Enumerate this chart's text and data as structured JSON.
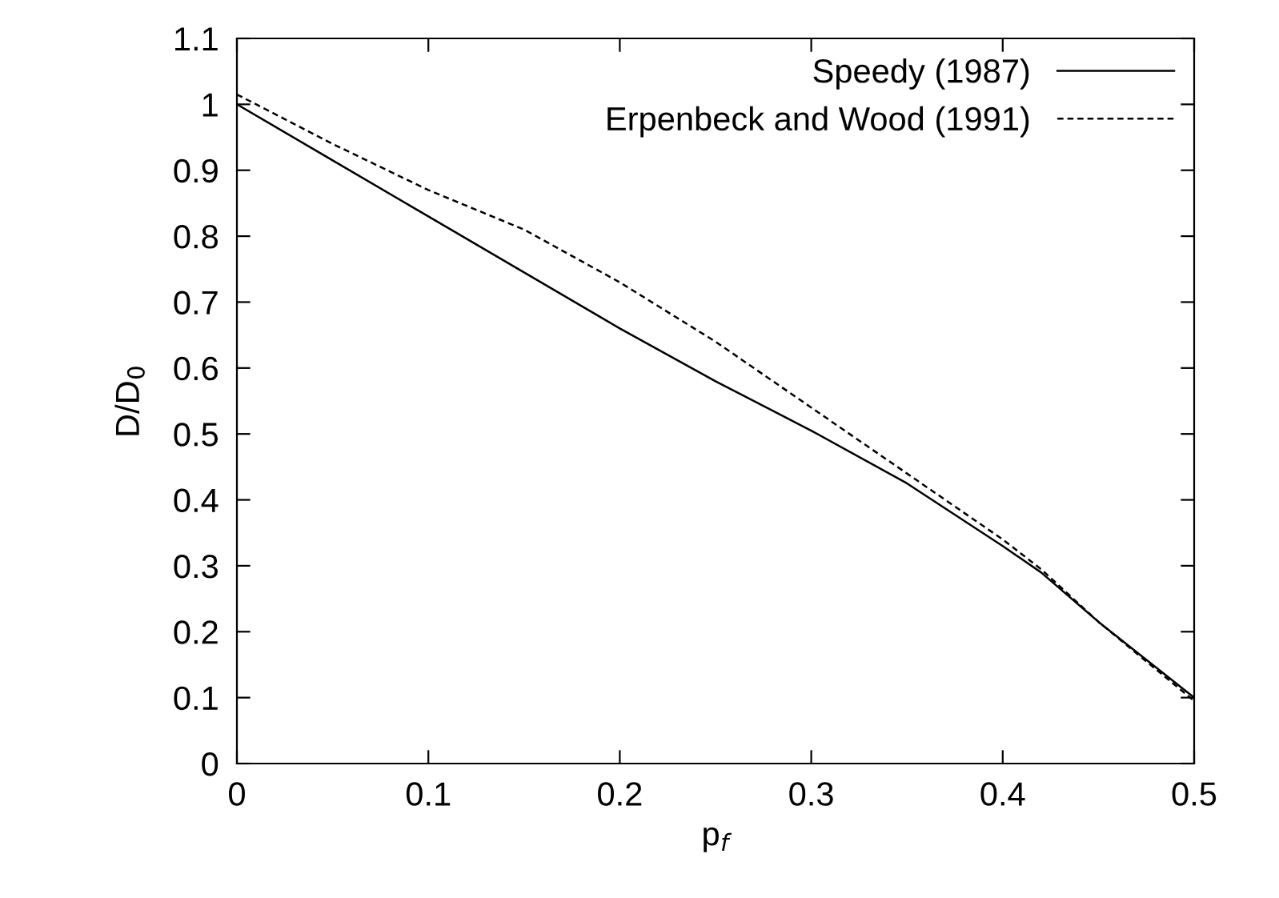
{
  "chart_data": {
    "type": "line",
    "xlabel": "p$_{f}$",
    "ylabel": "D/D$_{0}$",
    "x": [
      0,
      0.05,
      0.1,
      0.15,
      0.2,
      0.25,
      0.3,
      0.35,
      0.4,
      0.42,
      0.45,
      0.5
    ],
    "series": [
      {
        "name": "Speedy (1987)",
        "color": "#000000",
        "line_style": "solid",
        "values": [
          1.0,
          0.915,
          0.83,
          0.745,
          0.66,
          0.58,
          0.505,
          0.425,
          0.33,
          0.29,
          0.215,
          0.1
        ]
      },
      {
        "name": "Erpenbeck and Wood (1991)",
        "color": "#000000",
        "line_style": "dashed",
        "values": [
          1.015,
          0.94,
          0.87,
          0.81,
          0.73,
          0.64,
          0.54,
          0.44,
          0.34,
          0.295,
          0.215,
          0.095
        ]
      }
    ],
    "xlim": [
      0,
      0.5
    ],
    "xticks": [
      0,
      0.1,
      0.2,
      0.3,
      0.4,
      0.5
    ],
    "ylim": [
      0,
      1.1
    ],
    "yticks": [
      0,
      0.1,
      0.2,
      0.3,
      0.4,
      0.5,
      0.6,
      0.7,
      0.8,
      0.9,
      1,
      1.1
    ],
    "legend": "top right",
    "grid": false
  }
}
